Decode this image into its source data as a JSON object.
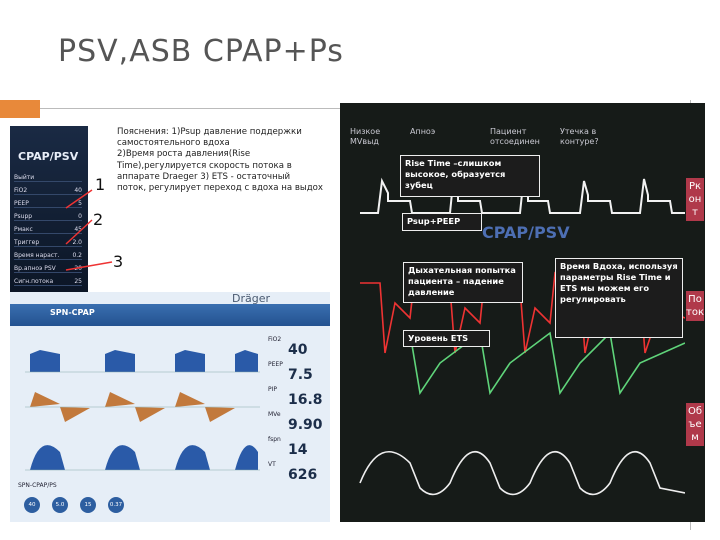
{
  "title": "PSV,ASB CPAP+Ps",
  "explanation": {
    "lines": [
      "Пояснения: 1)Psup давление поддержки",
      "самостоятельного вдоха",
      "2)Время роста давления(Rise",
      "Time),регулируется скорость потока в",
      "аппарате Draeger 3) ETS - остаточный",
      "поток, регулирует переход с вдоха на выдох"
    ]
  },
  "markers": [
    "1",
    "2",
    "3"
  ],
  "left_panel": {
    "header": "CPAP/PSV",
    "rows": [
      {
        "label": "Выйти",
        "value": ""
      },
      {
        "label": "FiO2",
        "value": "40"
      },
      {
        "label": "PEEP",
        "value": "5"
      },
      {
        "label": "Psupp",
        "value": "0"
      },
      {
        "label": "Рмакс",
        "value": "45"
      },
      {
        "label": "Триггер",
        "value": "2.0"
      },
      {
        "label": "Время нараст.",
        "value": "0.2"
      },
      {
        "label": "Вр.апноэ PSV",
        "value": "20"
      },
      {
        "label": "Сигн.потока",
        "value": "25"
      }
    ]
  },
  "drager": {
    "brand": "Dräger",
    "mode": "SPN-CPAP",
    "readings": [
      {
        "label": "FiO2",
        "value": "40"
      },
      {
        "label": "PEEP",
        "value": "7.5"
      },
      {
        "label": "PIP",
        "value": "16.8"
      },
      {
        "label": "MVe",
        "value": "9.90"
      },
      {
        "label": "fspn",
        "value": "14"
      },
      {
        "label": "VT",
        "value": "626"
      }
    ],
    "footer": "SPN-CPAP/PS",
    "settings": [
      "40",
      "5.0",
      "15",
      "0.37"
    ]
  },
  "monitor": {
    "alarms": [
      "Низкое МVвыд",
      "Апноэ",
      "Пациент отсоединен",
      "Утечка в контуре?"
    ],
    "mode": "CPAP/PSV",
    "side_labels": [
      "Рконт",
      "Поток",
      "Объем"
    ],
    "callouts": [
      "Rise Time –слишком высокое, образуется зубец",
      "Psup+PEEP",
      "Дыхательная попытка пациента – падение давление",
      "Уровень ETS",
      "Время Вдоха, используя параметры Rise Time и ETS мы можем его регулировать"
    ]
  }
}
